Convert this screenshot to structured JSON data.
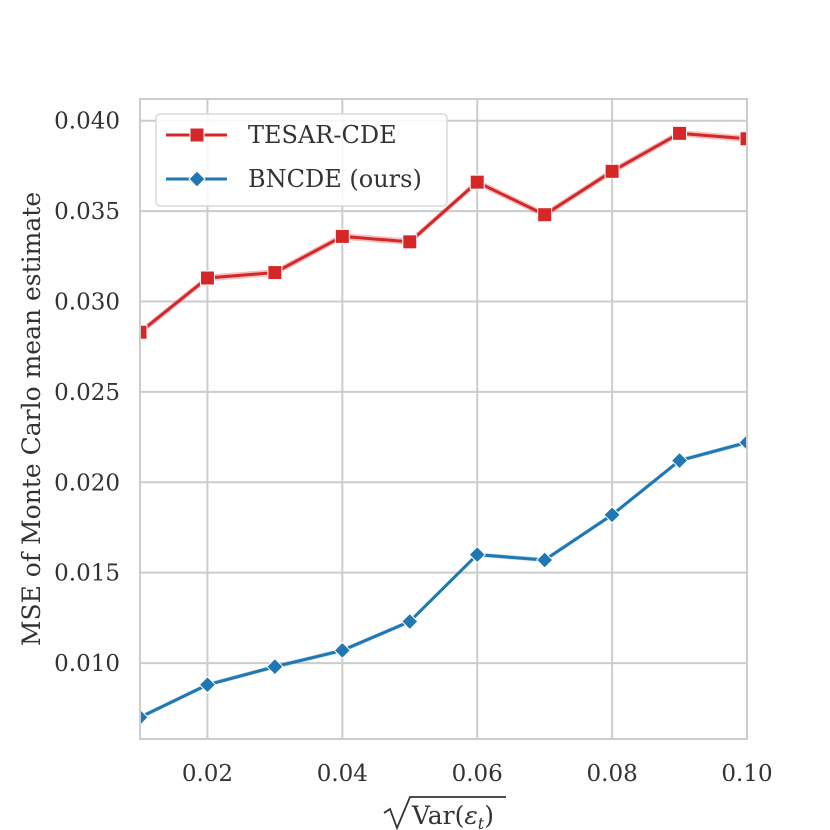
{
  "chart_data": {
    "type": "line",
    "title": "",
    "xlabel": "√Var(ε_t)",
    "ylabel": "MSE of Monte Carlo mean estimate",
    "xlim": [
      0.01,
      0.1
    ],
    "ylim": [
      0.0058,
      0.0412
    ],
    "grid": true,
    "legend_position": "top-left",
    "x": [
      0.01,
      0.02,
      0.03,
      0.04,
      0.05,
      0.06,
      0.07,
      0.08,
      0.09,
      0.1
    ],
    "x_ticks": [
      "0.02",
      "0.04",
      "0.06",
      "0.08",
      "0.10"
    ],
    "y_ticks": [
      "0.010",
      "0.015",
      "0.020",
      "0.025",
      "0.030",
      "0.035",
      "0.040"
    ],
    "series": [
      {
        "name": "TESAR-CDE",
        "color": "#d62728",
        "marker": "square",
        "values": [
          0.0283,
          0.0313,
          0.0316,
          0.0336,
          0.0333,
          0.0366,
          0.0348,
          0.0372,
          0.0393,
          0.039
        ]
      },
      {
        "name": "BNCDE (ours)",
        "color": "#1f77b4",
        "marker": "diamond",
        "values": [
          0.007,
          0.0088,
          0.0098,
          0.0107,
          0.0123,
          0.016,
          0.0157,
          0.0182,
          0.0212,
          0.0222
        ]
      }
    ]
  }
}
